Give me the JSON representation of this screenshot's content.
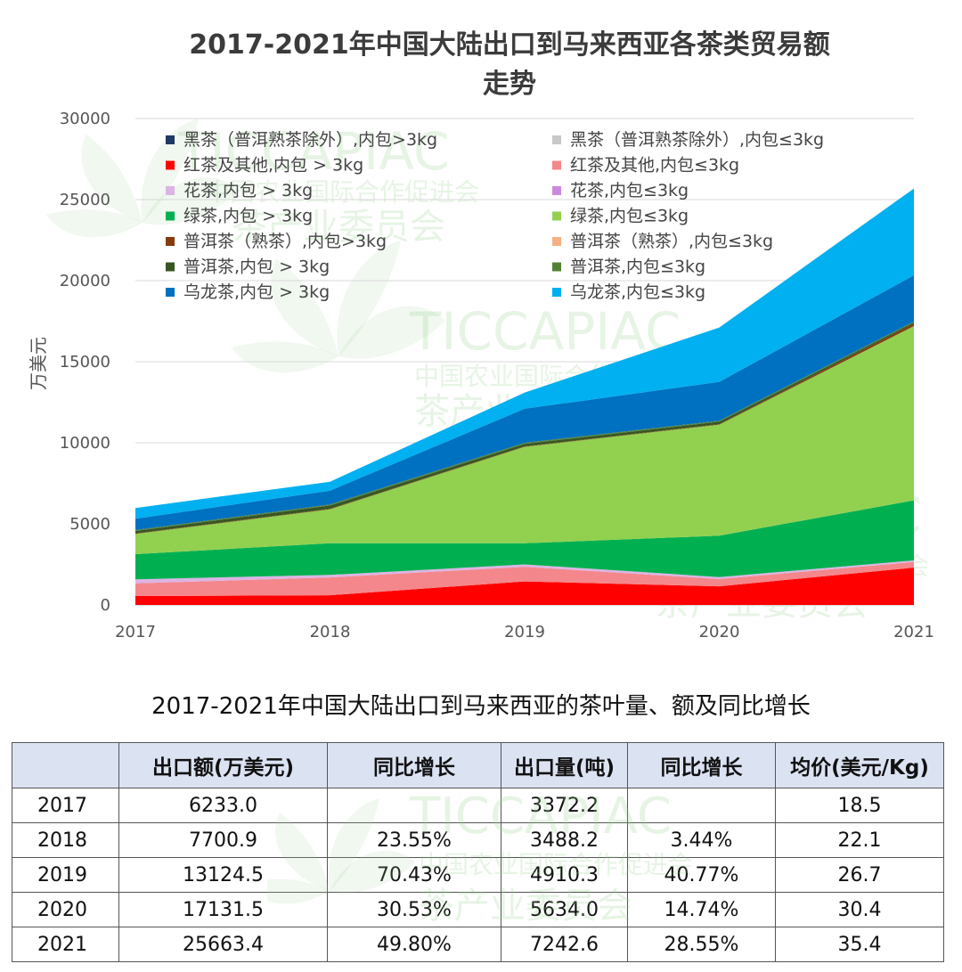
{
  "chart_data": {
    "type": "area",
    "stacked": true,
    "title": "2017-2021年中国大陆出口到马来西亚各茶类贸易额走势",
    "title_lines": [
      "2017-2021年中国大陆出口到马来西亚各茶类贸易额",
      "走势"
    ],
    "ylabel": "万美元",
    "xlabel": "",
    "ylim": [
      0,
      30000
    ],
    "yticks": [
      "0",
      "5000",
      "10000",
      "15000",
      "20000",
      "25000",
      "30000"
    ],
    "x": [
      "2017",
      "2018",
      "2019",
      "2020",
      "2021"
    ],
    "grid": true,
    "legend_position": "top-left, two columns",
    "series": [
      {
        "name": "黑茶（普洱熟茶除外）,内包>3kg",
        "color": "#1f3864",
        "values": [
          0,
          0,
          0,
          0,
          0
        ]
      },
      {
        "name": "黑茶（普洱熟茶除外）,内包≤3kg",
        "color": "#c8c8c8",
        "values": [
          0,
          0,
          0,
          0,
          0
        ]
      },
      {
        "name": "红茶及其他,内包 > 3kg",
        "color": "#ff0000",
        "values": [
          550,
          600,
          1450,
          1150,
          2300
        ]
      },
      {
        "name": "红茶及其他,内包≤3kg",
        "color": "#f4878b",
        "values": [
          780,
          1100,
          900,
          450,
          350
        ]
      },
      {
        "name": "花茶,内包 > 3kg",
        "color": "#dcb4e4",
        "values": [
          250,
          150,
          150,
          120,
          100
        ]
      },
      {
        "name": "花茶,内包≤3kg",
        "color": "#cc88dd",
        "values": [
          0,
          0,
          0,
          0,
          0
        ]
      },
      {
        "name": "绿茶,内包 > 3kg",
        "color": "#00b050",
        "values": [
          1550,
          1950,
          1300,
          2550,
          3700
        ]
      },
      {
        "name": "绿茶,内包≤3kg",
        "color": "#92d050",
        "values": [
          1250,
          2100,
          5950,
          6850,
          10750
        ]
      },
      {
        "name": "普洱茶（熟茶）,内包>3kg",
        "color": "#843c0c",
        "values": [
          30,
          30,
          30,
          30,
          150
        ]
      },
      {
        "name": "普洱茶（熟茶）,内包≤3kg",
        "color": "#f4b183",
        "values": [
          0,
          0,
          0,
          0,
          0
        ]
      },
      {
        "name": "普洱茶,内包 > 3kg",
        "color": "#375623",
        "values": [
          150,
          200,
          150,
          150,
          80
        ]
      },
      {
        "name": "普洱茶,内包≤3kg",
        "color": "#548235",
        "values": [
          60,
          70,
          70,
          60,
          50
        ]
      },
      {
        "name": "乌龙茶,内包 > 3kg",
        "color": "#0070c0",
        "values": [
          700,
          850,
          2100,
          2400,
          2850
        ]
      },
      {
        "name": "乌龙茶,内包≤3kg",
        "color": "#00b0f0",
        "values": [
          660,
          550,
          1000,
          3350,
          5350
        ]
      }
    ]
  },
  "watermark": {
    "brand": "TICCAPIAC",
    "line1": "中国农业国际合作促进会",
    "line2": "茶产业委员会"
  },
  "table": {
    "title": "2017-2021年中国大陆出口到马来西亚的茶叶量、额及同比增长",
    "headers": [
      "",
      "出口额(万美元)",
      "同比增长",
      "出口量(吨)",
      "同比增长",
      "均价(美元/Kg)"
    ],
    "rows": [
      [
        "2017",
        "6233.0",
        "",
        "3372.2",
        "",
        "18.5"
      ],
      [
        "2018",
        "7700.9",
        "23.55%",
        "3488.2",
        "3.44%",
        "22.1"
      ],
      [
        "2019",
        "13124.5",
        "70.43%",
        "4910.3",
        "40.77%",
        "26.7"
      ],
      [
        "2020",
        "17131.5",
        "30.53%",
        "5634.0",
        "14.74%",
        "30.4"
      ],
      [
        "2021",
        "25663.4",
        "49.80%",
        "7242.6",
        "28.55%",
        "35.4"
      ]
    ]
  }
}
